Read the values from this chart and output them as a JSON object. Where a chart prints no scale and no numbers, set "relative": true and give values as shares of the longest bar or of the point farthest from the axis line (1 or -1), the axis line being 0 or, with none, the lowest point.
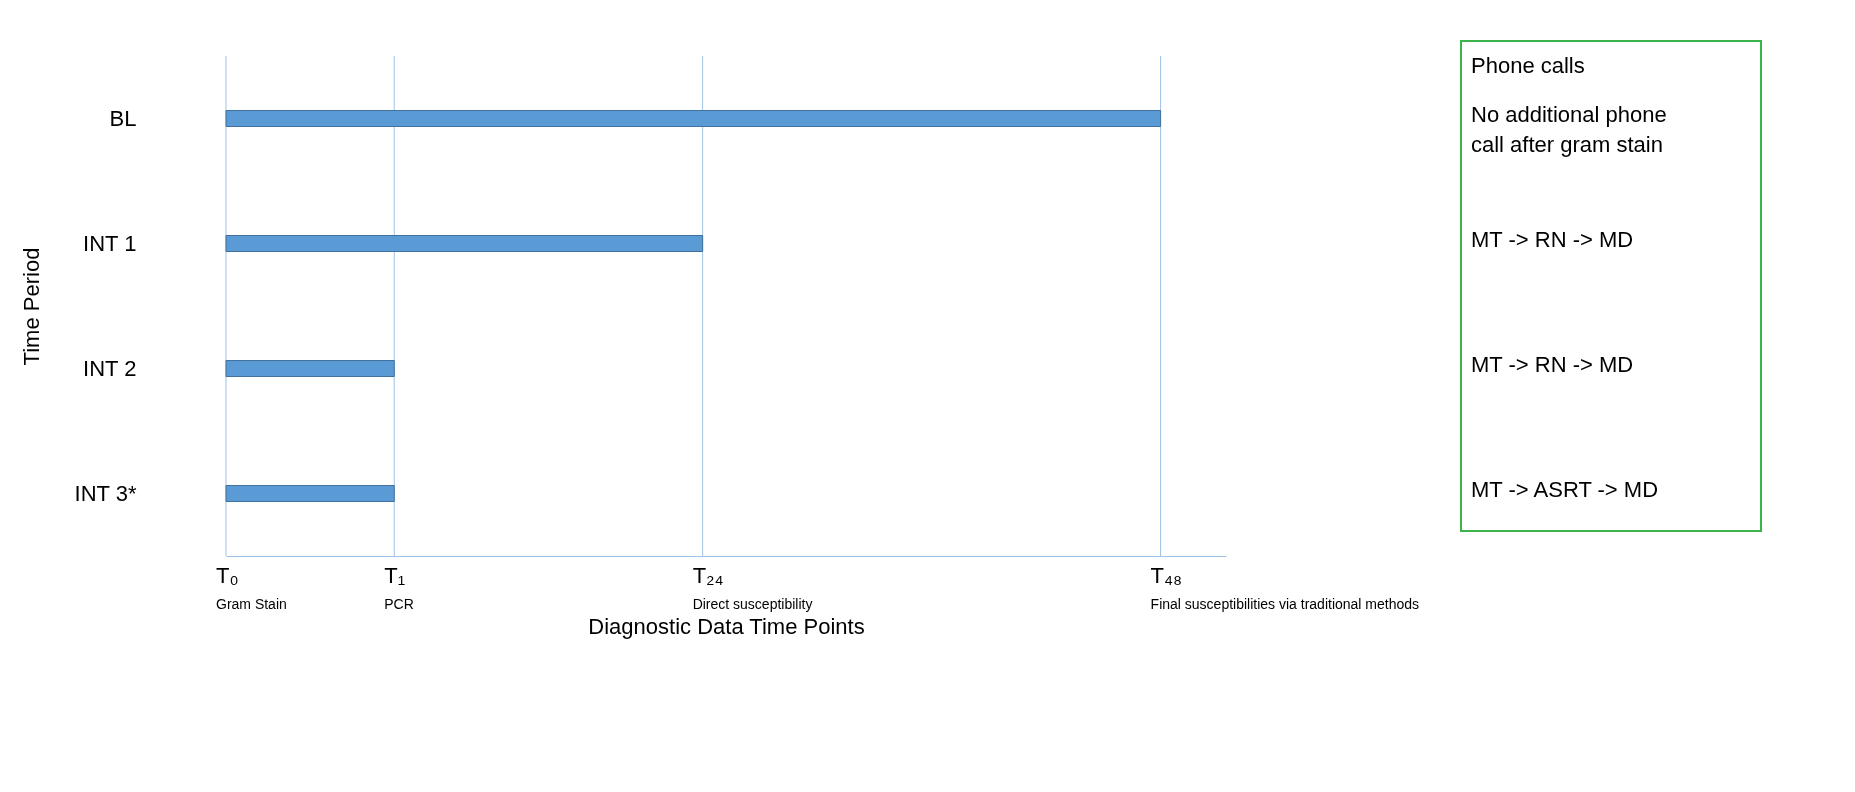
{
  "chart_data": {
    "type": "bar",
    "orientation": "horizontal",
    "relative": true,
    "ylabel": "Time Period",
    "xlabel": "Diagnostic Data Time Points",
    "categories": [
      "BL",
      "INT 1",
      "INT 2",
      "INT 3*"
    ],
    "values": [
      1.0,
      0.51,
      0.18,
      0.18
    ],
    "color": "#5b9bd5",
    "ref_lines": [
      {
        "axis": "x",
        "value": 0,
        "label": "T₀",
        "color": "#9dc3e6"
      },
      {
        "axis": "x",
        "value": 0.18,
        "label": "T₁",
        "color": "#9dc3e6"
      },
      {
        "axis": "x",
        "value": 0.51,
        "label": "T₂₄",
        "color": "#9dc3e6"
      },
      {
        "axis": "x",
        "value": 1.0,
        "label": "T₄₈",
        "color": "#9dc3e6"
      }
    ],
    "annotations": [
      "Gram Stain",
      "PCR",
      "Direct susceptibility",
      "Final susceptibilities via traditional methods",
      "Phone calls",
      "No additional phone call after gram stain",
      "MT -> RN -> MD",
      "MT -> RN -> MD",
      "MT -> ASRT -> MD"
    ]
  }
}
